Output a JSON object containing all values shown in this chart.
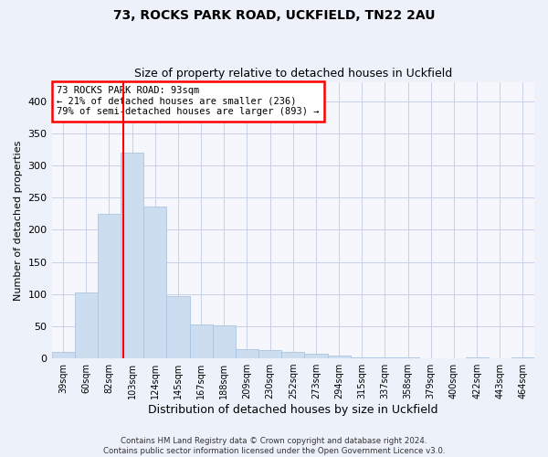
{
  "title": "73, ROCKS PARK ROAD, UCKFIELD, TN22 2AU",
  "subtitle": "Size of property relative to detached houses in Uckfield",
  "xlabel": "Distribution of detached houses by size in Uckfield",
  "ylabel": "Number of detached properties",
  "categories": [
    "39sqm",
    "60sqm",
    "82sqm",
    "103sqm",
    "124sqm",
    "145sqm",
    "167sqm",
    "188sqm",
    "209sqm",
    "230sqm",
    "252sqm",
    "273sqm",
    "294sqm",
    "315sqm",
    "337sqm",
    "358sqm",
    "379sqm",
    "400sqm",
    "422sqm",
    "443sqm",
    "464sqm"
  ],
  "values": [
    10,
    102,
    224,
    320,
    236,
    97,
    53,
    51,
    15,
    13,
    10,
    7,
    4,
    2,
    2,
    1,
    0,
    0,
    2,
    0,
    2
  ],
  "bar_color": "#ccddf0",
  "bar_edge_color": "#aac4e0",
  "annotation_text": "73 ROCKS PARK ROAD: 93sqm\n← 21% of detached houses are smaller (236)\n79% of semi-detached houses are larger (893) →",
  "annotation_box_color": "white",
  "annotation_box_edge_color": "red",
  "vline_color": "red",
  "vline_x_index": 2.62,
  "ylim": [
    0,
    430
  ],
  "yticks": [
    0,
    50,
    100,
    150,
    200,
    250,
    300,
    350,
    400
  ],
  "footer_line1": "Contains HM Land Registry data © Crown copyright and database right 2024.",
  "footer_line2": "Contains public sector information licensed under the Open Government Licence v3.0.",
  "bg_color": "#edf1fa",
  "plot_bg_color": "#f5f7fc",
  "grid_color": "#c8d0e8"
}
